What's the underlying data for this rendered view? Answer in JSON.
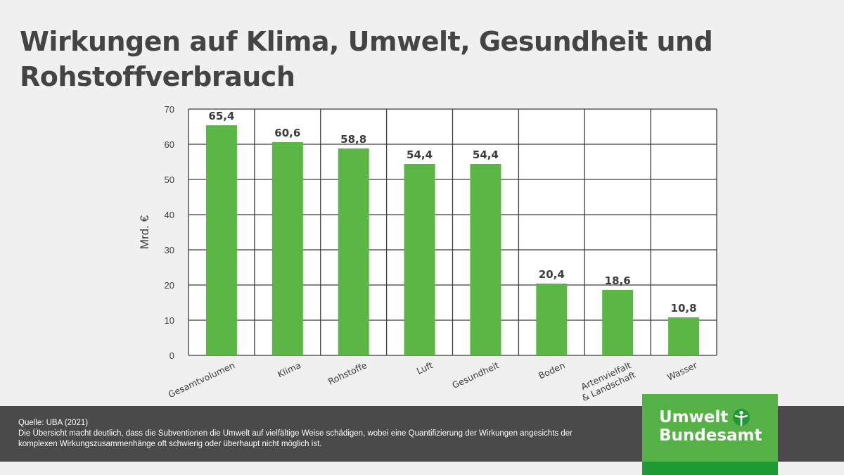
{
  "title": "Wirkungen auf Klima, Umwelt, Gesundheit und Rohstoffverbrauch",
  "chart_data": {
    "type": "bar",
    "categories": [
      "Gesamtvolumen",
      "Klima",
      "Rohstoffe",
      "Luft",
      "Gesundheit",
      "Boden",
      "Artenvielfalt\n& Landschaft",
      "Wasser"
    ],
    "values": [
      65.4,
      60.6,
      58.8,
      54.4,
      54.4,
      20.4,
      18.6,
      10.8
    ],
    "value_labels": [
      "65,4",
      "60,6",
      "58,8",
      "54,4",
      "54,4",
      "20,4",
      "18,6",
      "10,8"
    ],
    "ylabel": "Mrd. €",
    "ylim": [
      0,
      70
    ],
    "yticks": [
      0,
      10,
      20,
      30,
      40,
      50,
      60,
      70
    ],
    "grid": true,
    "bar_color": "#5bb646"
  },
  "footer": {
    "source": "Quelle: UBA (2021)",
    "description": "Die Übersicht macht deutlich, dass die Subventionen die Umwelt auf vielfältige Weise schädigen, wobei eine Quantifizierung der Wirkungen angesichts der komplexen Wirkungszusammenhänge oft schwierig oder überhaupt nicht möglich ist."
  },
  "logo": {
    "line1": "Umwelt",
    "line2": "Bundesamt",
    "icon": "uba-figure-icon"
  }
}
